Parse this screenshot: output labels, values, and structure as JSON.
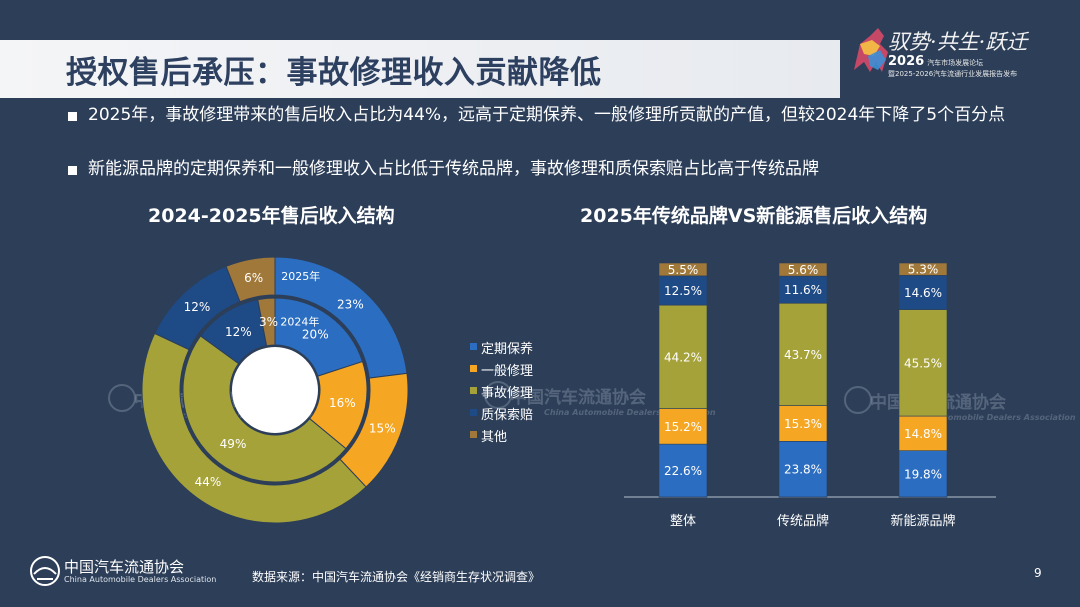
{
  "slide": {
    "title": "授权售后承压：事故修理收入贡献降低",
    "page_number": "9",
    "source": "数据来源：中国汽车流通协会《经销商生存状况调查》"
  },
  "brand": {
    "slogan": "驭势·共生·跃迁",
    "year": "2026",
    "forum": "汽车市场发展论坛",
    "subtitle": "暨2025-2026汽车流通行业发展报告发布"
  },
  "footer": {
    "org_cn": "中国汽车流通协会",
    "org_en": "China Automobile Dealers Association"
  },
  "watermark": {
    "cn": "中国汽车流通协会",
    "en": "China Automobile Dealers Association"
  },
  "bullets": [
    "2025年，事故修理带来的售后收入占比为44%，远高于定期保养、一般修理所贡献的产值，但较2024年下降了5个百分点",
    "新能源品牌的定期保养和一般修理收入占比低于传统品牌，事故修理和质保索赔占比高于传统品牌"
  ],
  "colors": {
    "定期保养": "#2b6dc0",
    "一般修理": "#f5a623",
    "事故修理": "#a5a23a",
    "质保索赔": "#1e4a86",
    "其他": "#a0783a",
    "background": "#2c3e58"
  },
  "chart_data": [
    {
      "type": "pie",
      "variant": "double-donut",
      "title": "2024-2025年售后收入结构",
      "categories": [
        "定期保养",
        "一般修理",
        "事故修理",
        "质保索赔",
        "其他"
      ],
      "series": [
        {
          "name": "2025年",
          "ring": "outer",
          "values": [
            23,
            15,
            44,
            12,
            6
          ],
          "labels": [
            "23%",
            "15%",
            "44%",
            "12%",
            "6%"
          ]
        },
        {
          "name": "2024年",
          "ring": "inner",
          "values": [
            20,
            16,
            49,
            12,
            3
          ],
          "labels": [
            "20%",
            "16%",
            "49%",
            "12%",
            "3%"
          ]
        }
      ],
      "legend": [
        "定期保养",
        "一般修理",
        "事故修理",
        "质保索赔",
        "其他"
      ],
      "legend_position": "right"
    },
    {
      "type": "bar",
      "stacked": true,
      "percent": true,
      "title": "2025年传统品牌VS新能源售后收入结构",
      "categories": [
        "整体",
        "传统品牌",
        "新能源品牌"
      ],
      "series": [
        {
          "name": "定期保养",
          "values": [
            22.6,
            23.8,
            19.8
          ],
          "labels": [
            "22.6%",
            "23.8%",
            "19.8%"
          ]
        },
        {
          "name": "一般修理",
          "values": [
            15.2,
            15.3,
            14.8
          ],
          "labels": [
            "15.2%",
            "15.3%",
            "14.8%"
          ]
        },
        {
          "name": "事故修理",
          "values": [
            44.2,
            43.7,
            45.5
          ],
          "labels": [
            "44.2%",
            "43.7%",
            "45.5%"
          ]
        },
        {
          "name": "质保索赔",
          "values": [
            12.5,
            11.6,
            14.6
          ],
          "labels": [
            "12.5%",
            "11.6%",
            "14.6%"
          ]
        },
        {
          "name": "其他",
          "values": [
            5.5,
            5.6,
            5.3
          ],
          "labels": [
            "5.5%",
            "5.6%",
            "5.3%"
          ]
        }
      ],
      "ylim": [
        0,
        100
      ]
    }
  ]
}
